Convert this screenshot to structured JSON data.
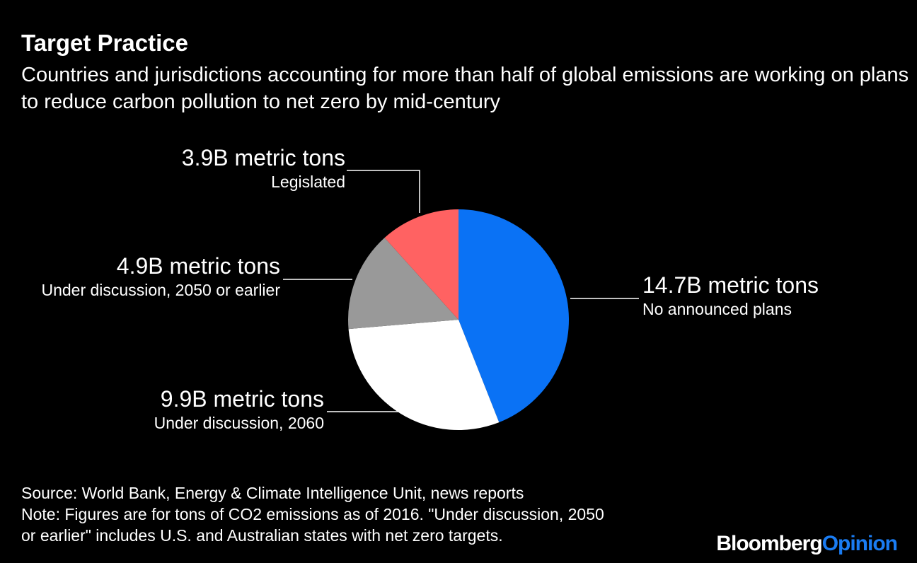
{
  "chart_data": {
    "type": "pie",
    "title": "Target Practice",
    "subtitle": "Countries and jurisdictions accounting for more than half of global emissions are working on plans to reduce carbon pollution to net zero by mid-century",
    "unit": "B metric tons",
    "slices": [
      {
        "label": "No announced plans",
        "value": 14.7,
        "value_label": "14.7B metric tons",
        "color": "#0a72f5"
      },
      {
        "label": "Under discussion, 2060",
        "value": 9.9,
        "value_label": "9.9B metric tons",
        "color": "#ffffff"
      },
      {
        "label": "Under discussion, 2050 or earlier",
        "value": 4.9,
        "value_label": "4.9B metric tons",
        "color": "#999999"
      },
      {
        "label": "Legislated",
        "value": 3.9,
        "value_label": "3.9B metric tons",
        "color": "#ff6262"
      }
    ],
    "start_angle": "12 o'clock, clockwise"
  },
  "footer": {
    "source": "Source: World Bank, Energy & Climate Intelligence Unit, news reports",
    "note_line1": "Note: Figures are for tons of CO2 emissions as of 2016. \"Under discussion, 2050",
    "note_line2": "or earlier\" includes U.S. and Australian states with net zero targets."
  },
  "logo": {
    "part1": "Bloomberg",
    "part2": "Opinion"
  }
}
